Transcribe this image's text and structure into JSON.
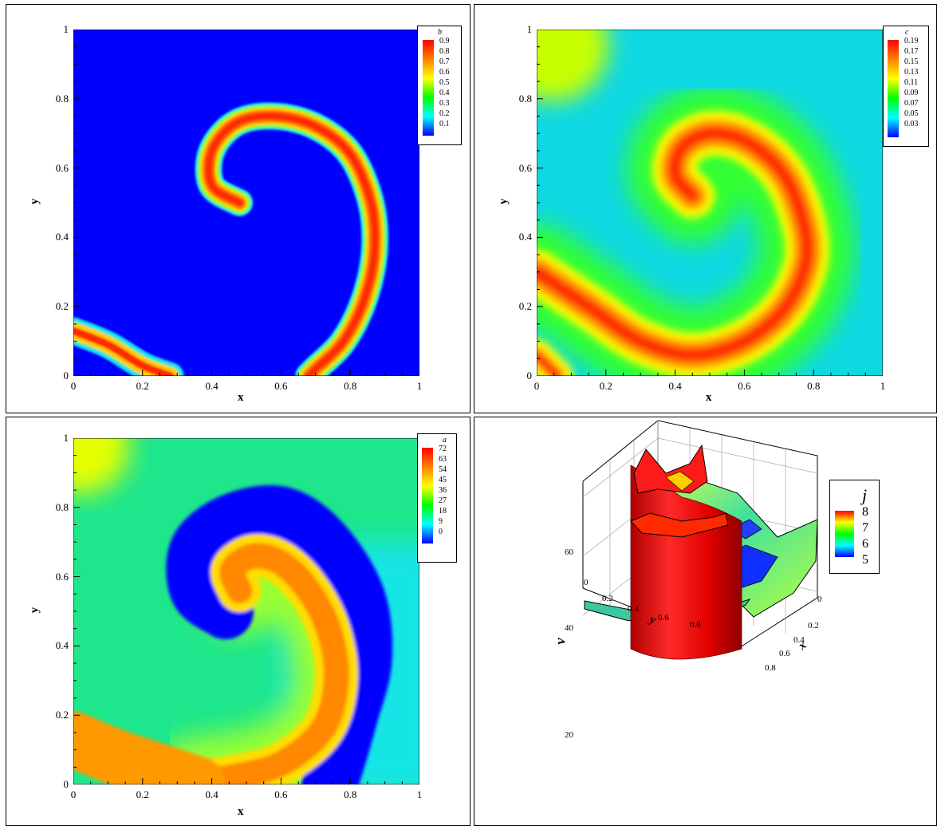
{
  "chart_data": [
    {
      "type": "heatmap",
      "variable": "b",
      "xlabel": "x",
      "ylabel": "y",
      "xticks": [
        "0",
        "0.2",
        "0.4",
        "0.6",
        "0.8",
        "1"
      ],
      "yticks": [
        "0",
        "0.2",
        "0.4",
        "0.6",
        "0.8",
        "1"
      ],
      "xlim": [
        0,
        1
      ],
      "ylim": [
        0,
        1
      ],
      "legend": {
        "title": "b",
        "levels": [
          "0.9",
          "0.8",
          "0.7",
          "0.6",
          "0.5",
          "0.4",
          "0.3",
          "0.2",
          "0.1"
        ],
        "placement": "top-right"
      },
      "background_color": "#0000ff",
      "pattern": "spiral wave front",
      "front_path": [
        [
          0.48,
          0.5
        ],
        [
          0.4,
          0.55
        ],
        [
          0.4,
          0.65
        ],
        [
          0.47,
          0.73
        ],
        [
          0.58,
          0.75
        ],
        [
          0.7,
          0.72
        ],
        [
          0.8,
          0.64
        ],
        [
          0.86,
          0.5
        ],
        [
          0.87,
          0.36
        ],
        [
          0.84,
          0.22
        ],
        [
          0.78,
          0.1
        ],
        [
          0.7,
          0.02
        ],
        [
          0.68,
          0.0
        ]
      ],
      "corner_front": [
        [
          0.0,
          0.13
        ],
        [
          0.1,
          0.09
        ],
        [
          0.2,
          0.03
        ],
        [
          0.28,
          0.0
        ]
      ]
    },
    {
      "type": "heatmap",
      "variable": "c",
      "xlabel": "x",
      "ylabel": "y",
      "xticks": [
        "0",
        "0.2",
        "0.4",
        "0.6",
        "0.8",
        "1"
      ],
      "yticks": [
        "0",
        "0.2",
        "0.4",
        "0.6",
        "0.8",
        "1"
      ],
      "xlim": [
        0,
        1
      ],
      "ylim": [
        0,
        1
      ],
      "legend": {
        "title": "c",
        "levels": [
          "0.19",
          "0.17",
          "0.15",
          "0.13",
          "0.11",
          "0.09",
          "0.07",
          "0.05",
          "0.03"
        ],
        "placement": "top-right"
      },
      "pattern": "broad spiral band"
    },
    {
      "type": "heatmap",
      "variable": "a",
      "xlabel": "x",
      "ylabel": "y",
      "xticks": [
        "0",
        "0.2",
        "0.4",
        "0.6",
        "0.8",
        "1"
      ],
      "yticks": [
        "0",
        "0.2",
        "0.4",
        "0.6",
        "0.8",
        "1"
      ],
      "xlim": [
        0,
        1
      ],
      "ylim": [
        0,
        1
      ],
      "legend": {
        "title": "a",
        "levels": [
          "72",
          "63",
          "54",
          "45",
          "36",
          "27",
          "18",
          "9",
          "0"
        ],
        "placement": "top-right"
      },
      "pattern": "spiral with blue refractory band"
    },
    {
      "type": "surface3d",
      "variable": "j",
      "zlabel": "v",
      "xlabel": "x",
      "ylabel": "y",
      "zticks": [
        "20",
        "40",
        "60"
      ],
      "xticks": [
        "0",
        "0.2",
        "0.4",
        "0.6",
        "0.8"
      ],
      "yticks": [
        "0",
        "0.2",
        "0.4",
        "0.6",
        "0.8"
      ],
      "legend": {
        "title": "j",
        "levels": [
          "8",
          "7",
          "6",
          "5"
        ],
        "placement": "top-right"
      }
    }
  ]
}
